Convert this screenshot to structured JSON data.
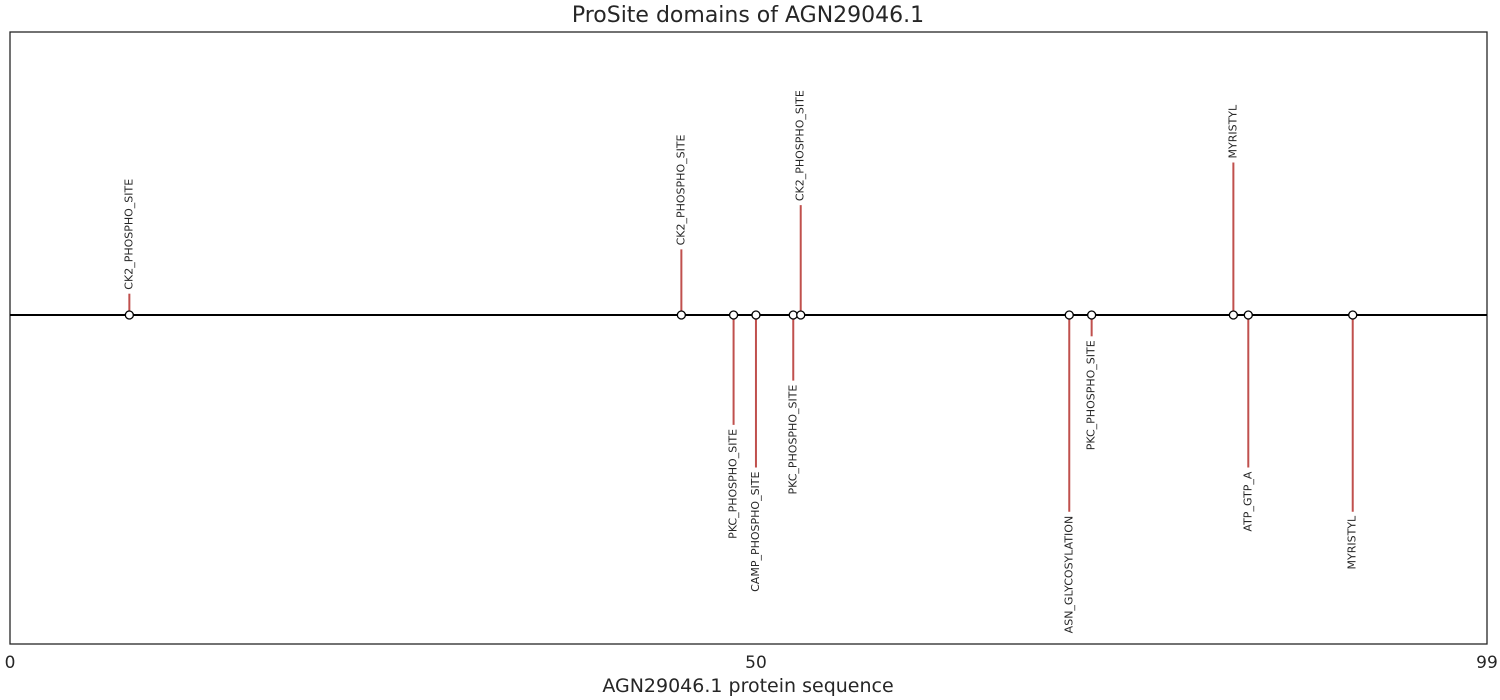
{
  "chart_data": {
    "type": "lollipop",
    "title": "ProSite domains of AGN29046.1",
    "xlabel": "AGN29046.1 protein sequence",
    "xlim": [
      0,
      99
    ],
    "ylim": [
      -1.0,
      1.0
    ],
    "xticks": [
      {
        "value": 0,
        "label": "0"
      },
      {
        "value": 50,
        "label": "50"
      },
      {
        "value": 99,
        "label": "99"
      }
    ],
    "grid": false,
    "colors": {
      "stem": "#c0504d",
      "baseline": "#000000",
      "marker_fill": "#ffffff",
      "marker_edge": "#000000",
      "frame": "#262626"
    },
    "sites": [
      {
        "x": 8,
        "y": 0.13,
        "label": "CK2_PHOSPHO_SITE"
      },
      {
        "x": 45,
        "y": 0.4,
        "label": "CK2_PHOSPHO_SITE"
      },
      {
        "x": 48.5,
        "y": -0.67,
        "label": "PKC_PHOSPHO_SITE"
      },
      {
        "x": 50,
        "y": -0.93,
        "label": "CAMP_PHOSPHO_SITE"
      },
      {
        "x": 52.5,
        "y": -0.4,
        "label": "PKC_PHOSPHO_SITE"
      },
      {
        "x": 53,
        "y": 0.67,
        "label": "CK2_PHOSPHO_SITE"
      },
      {
        "x": 71,
        "y": -1.2,
        "label": "ASN_GLYCOSYLATION"
      },
      {
        "x": 72.5,
        "y": -0.13,
        "label": "PKC_PHOSPHO_SITE"
      },
      {
        "x": 82,
        "y": 0.93,
        "label": "MYRISTYL"
      },
      {
        "x": 83,
        "y": -0.93,
        "label": "ATP_GTP_A"
      },
      {
        "x": 90,
        "y": -1.2,
        "label": "MYRISTYL"
      }
    ]
  }
}
